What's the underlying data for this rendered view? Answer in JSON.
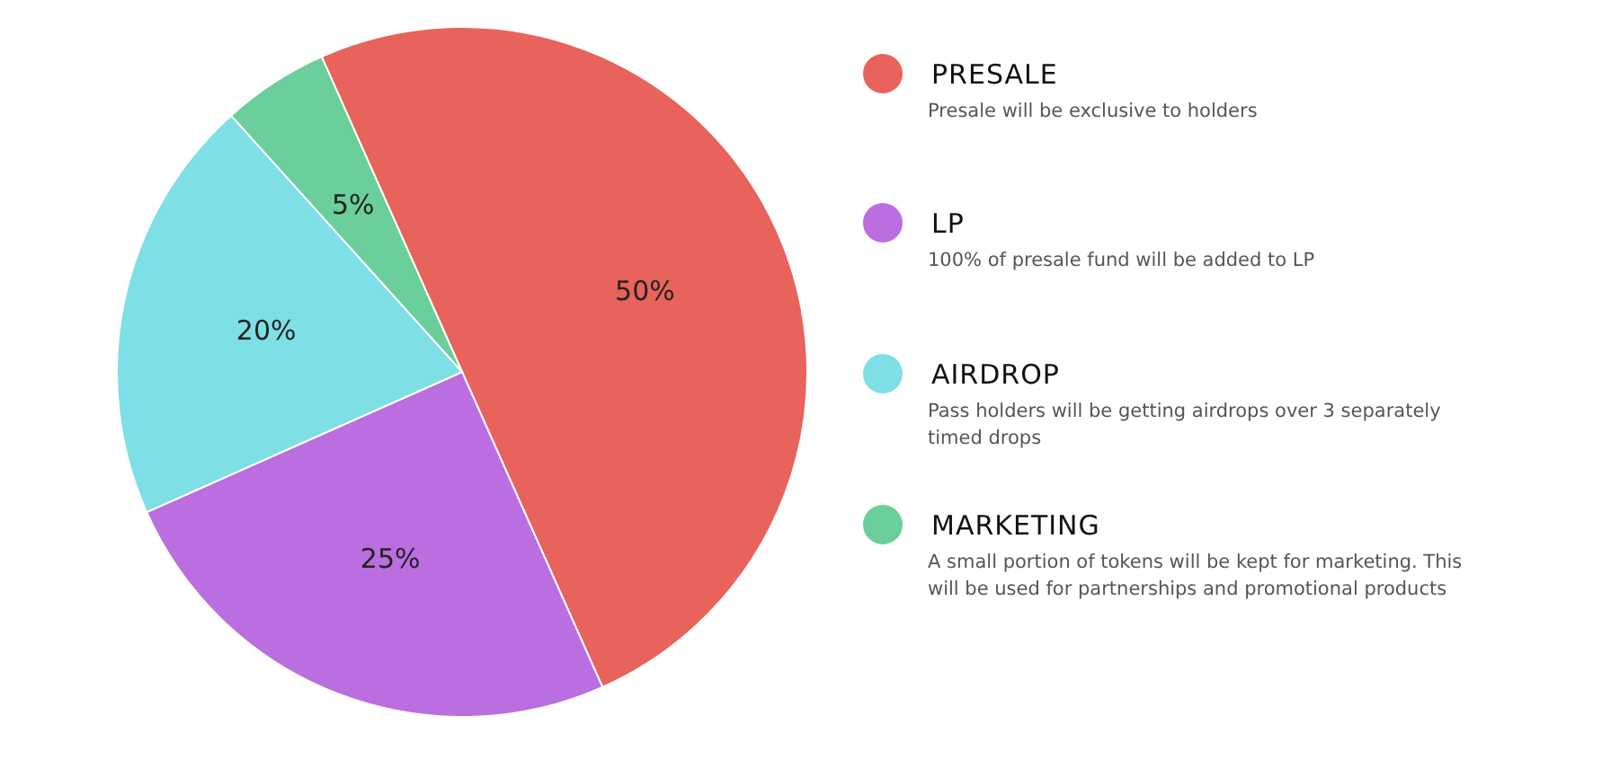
{
  "chart_data": {
    "type": "pie",
    "categories": [
      "PRESALE",
      "LP",
      "AIRDROP",
      "MARKETING"
    ],
    "values": [
      50,
      25,
      20,
      5
    ],
    "colors": [
      "#e8635c",
      "#bb6ee0",
      "#7edfe6",
      "#6acf9a"
    ],
    "value_labels": [
      "50%",
      "25%",
      "20%",
      "5%"
    ],
    "legend": "right",
    "annotations": [
      "Presale will be exclusive to holders",
      "100% of presale fund will be added to LP",
      "Pass holders will be getting airdrops over 3 separately timed drops",
      "A small portion of tokens will be kept for marketing. This will be used for partnerships and promotional products"
    ]
  }
}
